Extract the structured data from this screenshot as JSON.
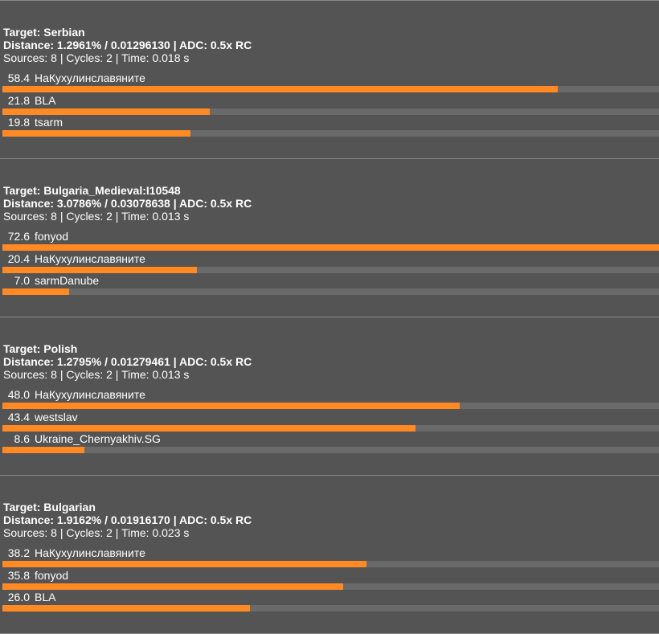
{
  "colors": {
    "background": "#545454",
    "bar_fill": "#ff8a24",
    "bar_track": "#6a6a6a",
    "divider": "#8a8a8a"
  },
  "blocks": [
    {
      "target": "Target: Serbian",
      "distance": "Distance: 1.2961% / 0.01296130 | ADC: 0.5x RC",
      "meta": "Sources: 8 | Cycles: 2 | Time: 0.018 s",
      "rows": [
        {
          "value": "58.4",
          "name": "НаКухулинславяните",
          "pct": 0.846
        },
        {
          "value": "21.8",
          "name": "BLA",
          "pct": 0.316
        },
        {
          "value": "19.8",
          "name": "tsarm",
          "pct": 0.287
        }
      ]
    },
    {
      "target": "Target: Bulgaria_Medieval:I10548",
      "distance": "Distance: 3.0786% / 0.03078638 | ADC: 0.5x RC",
      "meta": "Sources: 8 | Cycles: 2 | Time: 0.013 s",
      "rows": [
        {
          "value": "72.6",
          "name": "fonyod",
          "pct": 1.0
        },
        {
          "value": "20.4",
          "name": "НаКухулинславяните",
          "pct": 0.296
        },
        {
          "value": "7.0",
          "name": "sarmDanube",
          "pct": 0.101
        }
      ]
    },
    {
      "target": "Target: Polish",
      "distance": "Distance: 1.2795% / 0.01279461 | ADC: 0.5x RC",
      "meta": "Sources: 8 | Cycles: 2 | Time: 0.013 s",
      "rows": [
        {
          "value": "48.0",
          "name": "НаКухулинславяните",
          "pct": 0.696
        },
        {
          "value": "43.4",
          "name": "westslav",
          "pct": 0.629
        },
        {
          "value": "8.6",
          "name": "Ukraine_Chernyakhiv.SG",
          "pct": 0.125
        }
      ]
    },
    {
      "target": "Target: Bulgarian",
      "distance": "Distance: 1.9162% / 0.01916170 | ADC: 0.5x RC",
      "meta": "Sources: 8 | Cycles: 2 | Time: 0.023 s",
      "rows": [
        {
          "value": "38.2",
          "name": "НаКухулинславяните",
          "pct": 0.554
        },
        {
          "value": "35.8",
          "name": "fonyod",
          "pct": 0.519
        },
        {
          "value": "26.0",
          "name": "BLA",
          "pct": 0.377
        }
      ]
    }
  ]
}
